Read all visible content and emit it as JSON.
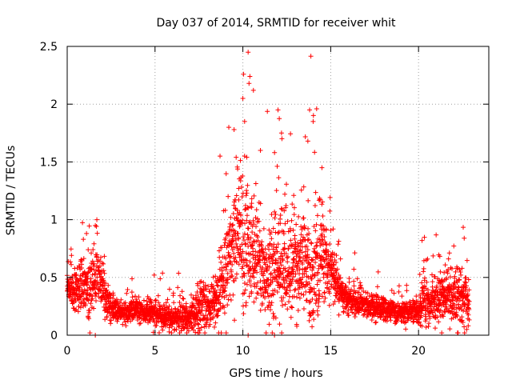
{
  "chart_data": {
    "type": "scatter",
    "title": "Day 037 of 2014, SRMTID for receiver whit",
    "xlabel": "GPS time / hours",
    "ylabel": "SRMTID / TECUs",
    "xlim": [
      0,
      24
    ],
    "ylim": [
      0,
      2.5
    ],
    "x_ticks": [
      0,
      5,
      10,
      15,
      20
    ],
    "y_ticks": [
      0,
      0.5,
      1,
      1.5,
      2,
      2.5
    ],
    "x_tick_labels": [
      "0",
      "5",
      "10",
      "15",
      "20"
    ],
    "y_tick_labels": [
      "0",
      "0.5",
      "1",
      "1.5",
      "2",
      "2.5"
    ],
    "grid": true,
    "marker": "+",
    "color": "#ff0000",
    "series": [
      {
        "name": "SRMTID",
        "envelope": {
          "x": [
            0.0,
            0.4,
            1.0,
            1.3,
            1.7,
            2.1,
            2.5,
            3.0,
            4.0,
            5.0,
            6.0,
            7.0,
            7.6,
            8.0,
            8.5,
            9.0,
            9.4,
            9.8,
            10.2,
            10.6,
            11.0,
            11.5,
            12.0,
            12.5,
            13.0,
            13.5,
            14.0,
            14.5,
            15.0,
            15.5,
            16.0,
            17.0,
            18.0,
            19.0,
            20.0,
            20.3,
            20.6,
            21.0,
            21.5,
            22.0,
            22.5,
            22.9
          ],
          "median": [
            0.42,
            0.35,
            0.45,
            0.4,
            0.55,
            0.35,
            0.22,
            0.2,
            0.22,
            0.18,
            0.15,
            0.16,
            0.25,
            0.25,
            0.3,
            0.5,
            0.7,
            0.9,
            0.85,
            0.7,
            0.6,
            0.55,
            0.65,
            0.6,
            0.6,
            0.6,
            0.55,
            0.7,
            0.55,
            0.4,
            0.3,
            0.25,
            0.22,
            0.2,
            0.2,
            0.35,
            0.25,
            0.3,
            0.35,
            0.3,
            0.3,
            0.3
          ],
          "spread": [
            0.12,
            0.15,
            0.25,
            0.3,
            0.25,
            0.15,
            0.1,
            0.08,
            0.08,
            0.1,
            0.1,
            0.1,
            0.25,
            0.15,
            0.2,
            0.35,
            0.45,
            0.55,
            0.55,
            0.4,
            0.35,
            0.45,
            0.5,
            0.4,
            0.35,
            0.45,
            0.45,
            0.4,
            0.25,
            0.15,
            0.12,
            0.1,
            0.08,
            0.08,
            0.1,
            0.3,
            0.15,
            0.2,
            0.2,
            0.2,
            0.25,
            0.2
          ]
        },
        "density_per_hour": 145,
        "seed": 37
      }
    ],
    "highlights": [
      {
        "x": 10.3,
        "y": 2.45
      },
      {
        "x": 10.4,
        "y": 2.24
      },
      {
        "x": 10.35,
        "y": 2.18
      },
      {
        "x": 10.0,
        "y": 2.05
      },
      {
        "x": 10.1,
        "y": 1.85
      },
      {
        "x": 10.6,
        "y": 2.12
      },
      {
        "x": 12.0,
        "y": 1.95
      },
      {
        "x": 13.8,
        "y": 1.95
      },
      {
        "x": 14.2,
        "y": 1.96
      },
      {
        "x": 14.0,
        "y": 1.85
      },
      {
        "x": 9.2,
        "y": 1.8
      },
      {
        "x": 9.5,
        "y": 1.78
      },
      {
        "x": 12.2,
        "y": 1.75
      },
      {
        "x": 13.7,
        "y": 1.68
      },
      {
        "x": 11.0,
        "y": 1.6
      },
      {
        "x": 14.5,
        "y": 1.45
      },
      {
        "x": 8.7,
        "y": 1.55
      },
      {
        "x": 1.6,
        "y": 0.95
      },
      {
        "x": 1.1,
        "y": 0.88
      },
      {
        "x": 20.2,
        "y": 0.82
      },
      {
        "x": 22.6,
        "y": 0.84
      },
      {
        "x": 1.6,
        "y": 0.0
      },
      {
        "x": 10.3,
        "y": 0.0
      },
      {
        "x": 11.8,
        "y": 0.0
      }
    ]
  }
}
